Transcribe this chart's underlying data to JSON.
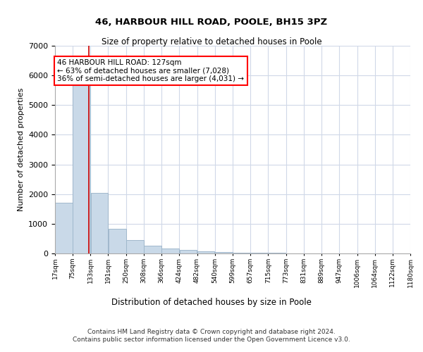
{
  "title1": "46, HARBOUR HILL ROAD, POOLE, BH15 3PZ",
  "title2": "Size of property relative to detached houses in Poole",
  "xlabel": "Distribution of detached houses by size in Poole",
  "ylabel": "Number of detached properties",
  "annotation_title": "46 HARBOUR HILL ROAD: 127sqm",
  "annotation_line1": "← 63% of detached houses are smaller (7,028)",
  "annotation_line2": "36% of semi-detached houses are larger (4,031) →",
  "property_size_sqm": 127,
  "bin_edges": [
    17,
    75,
    133,
    191,
    250,
    308,
    366,
    424,
    482,
    540,
    599,
    657,
    715,
    773,
    831,
    889,
    947,
    1006,
    1064,
    1122,
    1180
  ],
  "bar_values": [
    1700,
    5800,
    2050,
    830,
    440,
    270,
    175,
    115,
    75,
    55,
    30,
    20,
    15,
    10,
    8,
    5,
    4,
    3,
    2,
    2
  ],
  "bar_color": "#c9d9e8",
  "bar_edge_color": "#a0b8cc",
  "marker_color": "#cc0000",
  "ylim": [
    0,
    7000
  ],
  "yticks": [
    0,
    1000,
    2000,
    3000,
    4000,
    5000,
    6000,
    7000
  ],
  "bg_color": "#ffffff",
  "grid_color": "#d0d8e8",
  "footer_line1": "Contains HM Land Registry data © Crown copyright and database right 2024.",
  "footer_line2": "Contains public sector information licensed under the Open Government Licence v3.0."
}
